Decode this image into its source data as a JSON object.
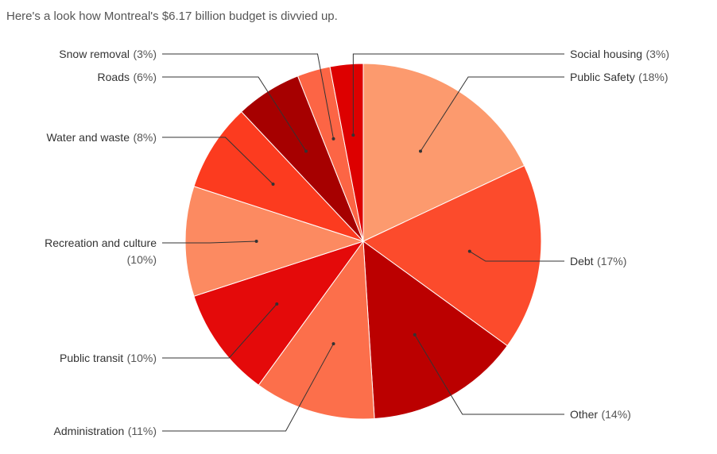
{
  "subtitle": "Here's a look how Montreal's $6.17 billion budget is divvied up.",
  "chart_data": {
    "type": "pie",
    "title": "",
    "total_label": "$6.17 billion",
    "slices": [
      {
        "name": "Public Safety",
        "percent_label": "(18%)",
        "value": 18,
        "color": "#FC9A6E"
      },
      {
        "name": "Debt",
        "percent_label": "(17%)",
        "value": 17,
        "color": "#FC4B2C"
      },
      {
        "name": "Other",
        "percent_label": "(14%)",
        "value": 14,
        "color": "#BB0000"
      },
      {
        "name": "Administration",
        "percent_label": "(11%)",
        "value": 11,
        "color": "#FC6F4B"
      },
      {
        "name": "Public transit",
        "percent_label": "(10%)",
        "value": 10,
        "color": "#E40A0A"
      },
      {
        "name": "Recreation and culture",
        "percent_label": "(10%)",
        "value": 10,
        "color": "#FC8A61"
      },
      {
        "name": "Water and waste",
        "percent_label": "(8%)",
        "value": 8,
        "color": "#FC3B1F"
      },
      {
        "name": "Roads",
        "percent_label": "(6%)",
        "value": 6,
        "color": "#A60000"
      },
      {
        "name": "Snow removal",
        "percent_label": "(3%)",
        "value": 3,
        "color": "#FC6545"
      },
      {
        "name": "Social housing",
        "percent_label": "(3%)",
        "value": 3,
        "color": "#DD0000"
      }
    ]
  }
}
